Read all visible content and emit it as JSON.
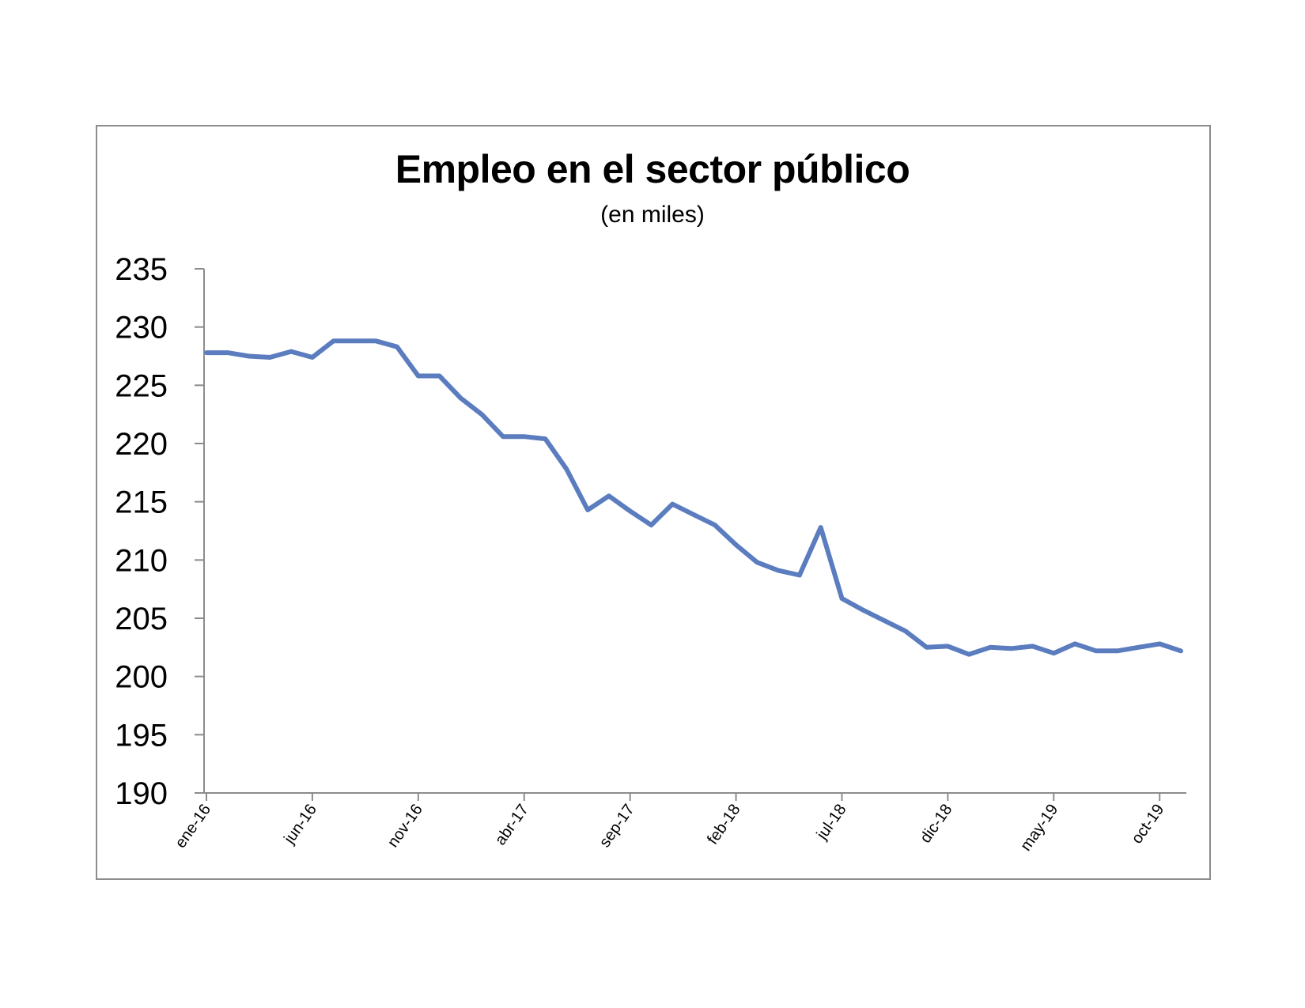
{
  "colors": {
    "line": "#5b7dbf",
    "axis": "#8c8c8c",
    "frame": "#8c8c8c"
  },
  "chart_data": {
    "type": "line",
    "title": "Empleo en el sector público",
    "subtitle": "(en miles)",
    "xlabel": "",
    "ylabel": "",
    "ylim": [
      190,
      235
    ],
    "yticks": [
      190,
      195,
      200,
      205,
      210,
      215,
      220,
      225,
      230,
      235
    ],
    "grid": false,
    "x_tick_labels": [
      {
        "label": "ene-16",
        "index": 0
      },
      {
        "label": "jun-16",
        "index": 5
      },
      {
        "label": "nov-16",
        "index": 10
      },
      {
        "label": "abr-17",
        "index": 15
      },
      {
        "label": "sep-17",
        "index": 20
      },
      {
        "label": "feb-18",
        "index": 25
      },
      {
        "label": "jul-18",
        "index": 30
      },
      {
        "label": "dic-18",
        "index": 35
      },
      {
        "label": "may-19",
        "index": 40
      },
      {
        "label": "oct-19",
        "index": 45
      }
    ],
    "x": [
      "ene-16",
      "feb-16",
      "mar-16",
      "abr-16",
      "may-16",
      "jun-16",
      "jul-16",
      "ago-16",
      "sep-16",
      "oct-16",
      "nov-16",
      "dic-16",
      "ene-17",
      "feb-17",
      "mar-17",
      "abr-17",
      "may-17",
      "jun-17",
      "jul-17",
      "ago-17",
      "sep-17",
      "oct-17",
      "nov-17",
      "dic-17",
      "ene-18",
      "feb-18",
      "mar-18",
      "abr-18",
      "may-18",
      "jun-18",
      "jul-18",
      "ago-18",
      "sep-18",
      "oct-18",
      "nov-18",
      "dic-18",
      "ene-19",
      "feb-19",
      "mar-19",
      "abr-19",
      "may-19",
      "jun-19",
      "jul-19",
      "ago-19",
      "sep-19",
      "oct-19",
      "nov-19"
    ],
    "series": [
      {
        "values": [
          227.8,
          227.8,
          227.5,
          227.4,
          227.9,
          227.4,
          228.8,
          228.8,
          228.8,
          228.3,
          225.8,
          225.8,
          223.9,
          222.5,
          220.6,
          220.6,
          220.4,
          217.8,
          214.3,
          215.5,
          214.2,
          213.0,
          214.8,
          213.9,
          213.0,
          211.3,
          209.8,
          209.1,
          208.7,
          212.8,
          206.7,
          205.7,
          204.8,
          203.9,
          202.5,
          202.6,
          201.9,
          202.5,
          202.4,
          202.6,
          202.0,
          202.8,
          202.2,
          202.2,
          202.5,
          202.8,
          202.2
        ]
      }
    ]
  }
}
